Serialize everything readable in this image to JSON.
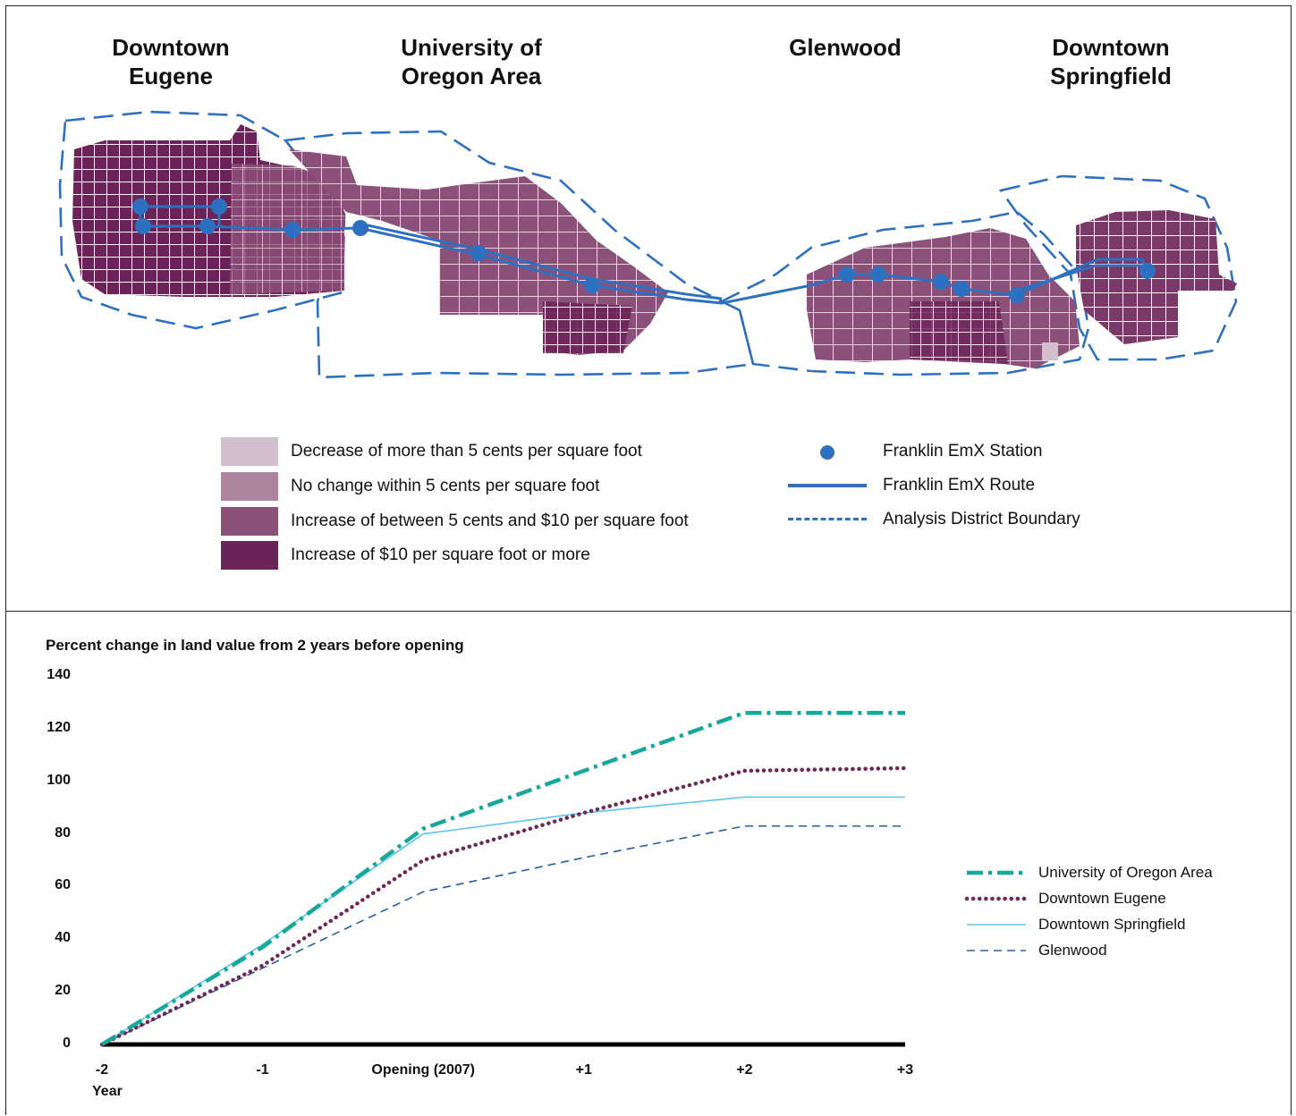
{
  "map": {
    "districts": [
      {
        "line1": "Downtown",
        "line2": "Eugene"
      },
      {
        "line1": "University of",
        "line2": "Oregon Area"
      },
      {
        "line1": "Glenwood",
        "line2": ""
      },
      {
        "line1": "Downtown",
        "line2": "Springfield"
      }
    ],
    "legend": [
      {
        "label": "Decrease of more than 5 cents per square foot",
        "color": "#d2bfcd"
      },
      {
        "label": "No change within 5 cents per square foot",
        "color": "#ac849f"
      },
      {
        "label": "Increase of between 5 cents and $10 per square foot",
        "color": "#8b5279"
      },
      {
        "label": "Increase of $10 per square foot or more",
        "color": "#6b2457"
      }
    ],
    "symbols": [
      {
        "label": "Franklin EmX Station"
      },
      {
        "label": "Franklin EmX Route"
      },
      {
        "label": "Analysis District Boundary"
      }
    ],
    "route_color": "#2e70c0",
    "boundary_color": "#2e70c0"
  },
  "chart_data": {
    "type": "line",
    "title": "Percent change in land value from 2 years before opening",
    "xlabel": "Year",
    "ylabel": "",
    "categories": [
      "-2",
      "-1",
      "Opening (2007)",
      "+1",
      "+2",
      "+3"
    ],
    "ylim": [
      0,
      140
    ],
    "yticks": [
      0,
      20,
      40,
      60,
      80,
      100,
      120,
      140
    ],
    "grid": false,
    "legend_position": "right",
    "series": [
      {
        "name": "University of Oregon Area",
        "values": [
          0,
          37,
          82,
          104,
          126,
          126
        ],
        "color": "#16a99a",
        "style": "dashdot"
      },
      {
        "name": "Downtown Eugene",
        "values": [
          0,
          30,
          70,
          88,
          104,
          105
        ],
        "color": "#6e2855",
        "style": "dotted"
      },
      {
        "name": "Downtown Springfield",
        "values": [
          0,
          38,
          80,
          88,
          94,
          94
        ],
        "color": "#5ec4ef",
        "style": "solid"
      },
      {
        "name": "Glenwood",
        "values": [
          0,
          29,
          58,
          71,
          83,
          83
        ],
        "color": "#2a5f9a",
        "style": "dashed"
      }
    ]
  }
}
